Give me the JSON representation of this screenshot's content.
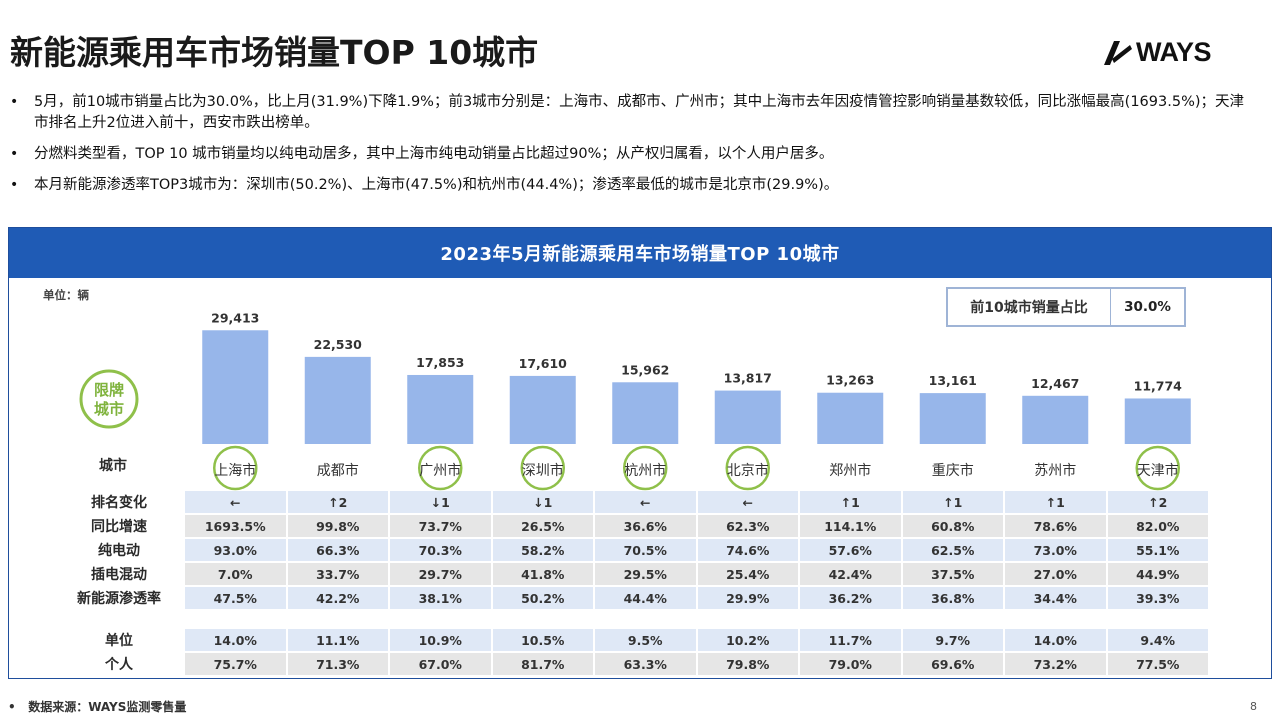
{
  "header": {
    "title": "新能源乘用车市场销量TOP 10城市",
    "logo_text": "WAYS"
  },
  "bullets": [
    "5月，前10城市销量占比为30.0%，比上月(31.9%)下降1.9%；前3城市分别是：上海市、成都市、广州市；其中上海市去年因疫情管控影响销量基数较低，同比涨幅最高(1693.5%)；天津市排名上升2位进入前十，西安市跌出榜单。",
    "分燃料类型看，TOP 10 城市销量均以纯电动居多，其中上海市纯电动销量占比超过90%；从产权归属看，以个人用户居多。",
    "本月新能源渗透率TOP3城市为：深圳市(50.2%)、上海市(47.5%)和杭州市(44.4%)；渗透率最低的城市是北京市(29.9%)。"
  ],
  "panel": {
    "title": "2023年5月新能源乘用车市场销量TOP 10城市",
    "unit": "单位：辆",
    "share_label": "前10城市销量占比",
    "share_value": "30.0%",
    "badge_text": "限牌\n城市",
    "city_row_label": "城市"
  },
  "chart_data": {
    "type": "bar",
    "title": "2023年5月新能源乘用车市场销量TOP 10城市",
    "ylabel": "单位：辆",
    "categories": [
      "上海市",
      "成都市",
      "广州市",
      "深圳市",
      "杭州市",
      "北京市",
      "郑州市",
      "重庆市",
      "苏州市",
      "天津市"
    ],
    "values": [
      29413,
      22530,
      17853,
      17610,
      15962,
      13817,
      13263,
      13161,
      12467,
      11774
    ],
    "value_labels": [
      "29,413",
      "22,530",
      "17,853",
      "17,610",
      "15,962",
      "13,817",
      "13,263",
      "13,161",
      "12,467",
      "11,774"
    ],
    "restricted_plate": [
      true,
      false,
      true,
      true,
      true,
      true,
      false,
      false,
      false,
      true
    ],
    "ylim": [
      0,
      30000
    ],
    "grid": false,
    "bar_color": "#97b6ea"
  },
  "table": {
    "rows": [
      {
        "label": "排名变化",
        "values": [
          "←",
          "↑2",
          "↓1",
          "↓1",
          "←",
          "←",
          "↑1",
          "↑1",
          "↑1",
          "↑2"
        ],
        "band": "light"
      },
      {
        "label": "同比增速",
        "values": [
          "1693.5%",
          "99.8%",
          "73.7%",
          "26.5%",
          "36.6%",
          "62.3%",
          "114.1%",
          "60.8%",
          "78.6%",
          "82.0%"
        ],
        "band": "grey"
      },
      {
        "label": "纯电动",
        "values": [
          "93.0%",
          "66.3%",
          "70.3%",
          "58.2%",
          "70.5%",
          "74.6%",
          "57.6%",
          "62.5%",
          "73.0%",
          "55.1%"
        ],
        "band": "light"
      },
      {
        "label": "插电混动",
        "values": [
          "7.0%",
          "33.7%",
          "29.7%",
          "41.8%",
          "29.5%",
          "25.4%",
          "42.4%",
          "37.5%",
          "27.0%",
          "44.9%"
        ],
        "band": "grey"
      },
      {
        "label": "新能源渗透率",
        "values": [
          "47.5%",
          "42.2%",
          "38.1%",
          "50.2%",
          "44.4%",
          "29.9%",
          "36.2%",
          "36.8%",
          "34.4%",
          "39.3%"
        ],
        "band": "light"
      },
      {
        "label": "单位",
        "values": [
          "14.0%",
          "11.1%",
          "10.9%",
          "10.5%",
          "9.5%",
          "10.2%",
          "11.7%",
          "9.7%",
          "14.0%",
          "9.4%"
        ],
        "band": "light"
      },
      {
        "label": "个人",
        "values": [
          "75.7%",
          "71.3%",
          "67.0%",
          "81.7%",
          "63.3%",
          "79.8%",
          "79.0%",
          "69.6%",
          "73.2%",
          "77.5%"
        ],
        "band": "grey"
      }
    ]
  },
  "footer": {
    "source": "数据来源：WAYS监测零售量",
    "page_number": "8"
  },
  "colors": {
    "header_blue": "#1f5bb5",
    "bar": "#97b6ea",
    "ring_green": "#8fc04a",
    "band_light": "#dfe8f6",
    "band_grey": "#e6e6e6"
  }
}
